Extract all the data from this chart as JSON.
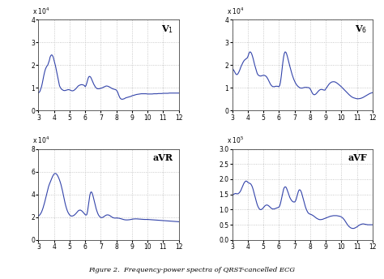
{
  "xlim": [
    3,
    12
  ],
  "xticks": [
    3,
    4,
    5,
    6,
    7,
    8,
    9,
    10,
    11,
    12
  ],
  "subplots": [
    {
      "label": "V$_1$",
      "scale_str": "x 10$^4$",
      "ylim": [
        0,
        4
      ],
      "yticks": [
        0,
        1,
        2,
        3,
        4
      ],
      "x": [
        3.0,
        3.05,
        3.1,
        3.15,
        3.2,
        3.25,
        3.3,
        3.35,
        3.4,
        3.45,
        3.5,
        3.55,
        3.6,
        3.65,
        3.7,
        3.75,
        3.8,
        3.85,
        3.9,
        3.95,
        4.0,
        4.05,
        4.1,
        4.15,
        4.2,
        4.25,
        4.3,
        4.35,
        4.4,
        4.45,
        4.5,
        4.55,
        4.6,
        4.65,
        4.7,
        4.75,
        4.8,
        4.85,
        4.9,
        4.95,
        5.0,
        5.05,
        5.1,
        5.15,
        5.2,
        5.25,
        5.3,
        5.35,
        5.4,
        5.45,
        5.5,
        5.55,
        5.6,
        5.65,
        5.7,
        5.75,
        5.8,
        5.85,
        5.9,
        5.95,
        6.0,
        6.05,
        6.1,
        6.15,
        6.2,
        6.25,
        6.3,
        6.35,
        6.4,
        6.45,
        6.5,
        6.55,
        6.6,
        6.65,
        6.7,
        6.75,
        6.8,
        6.85,
        6.9,
        6.95,
        7.0,
        7.05,
        7.1,
        7.15,
        7.2,
        7.25,
        7.3,
        7.35,
        7.4,
        7.45,
        7.5,
        7.55,
        7.6,
        7.65,
        7.7,
        7.75,
        7.8,
        7.85,
        7.9,
        7.95,
        8.0,
        8.05,
        8.1,
        8.15,
        8.2,
        8.25,
        8.3,
        8.35,
        8.4,
        8.45,
        8.5,
        8.55,
        8.6,
        8.65,
        8.7,
        8.75,
        8.8,
        8.85,
        8.9,
        8.95,
        9.0,
        9.1,
        9.2,
        9.3,
        9.4,
        9.5,
        9.6,
        9.7,
        9.8,
        9.9,
        10.0,
        10.1,
        10.2,
        10.3,
        10.4,
        10.5,
        10.6,
        10.7,
        10.8,
        10.9,
        11.0,
        11.1,
        11.2,
        11.3,
        11.4,
        11.5,
        11.6,
        11.7,
        11.8,
        11.9,
        12.0
      ],
      "y": [
        0.78,
        0.8,
        0.85,
        0.95,
        1.05,
        1.2,
        1.38,
        1.55,
        1.7,
        1.82,
        1.9,
        1.96,
        2.0,
        2.1,
        2.2,
        2.35,
        2.42,
        2.45,
        2.42,
        2.35,
        2.22,
        2.1,
        1.95,
        1.78,
        1.6,
        1.42,
        1.25,
        1.1,
        1.02,
        0.97,
        0.93,
        0.91,
        0.89,
        0.88,
        0.88,
        0.89,
        0.9,
        0.91,
        0.92,
        0.92,
        0.91,
        0.9,
        0.88,
        0.87,
        0.87,
        0.88,
        0.9,
        0.93,
        0.96,
        1.0,
        1.04,
        1.08,
        1.1,
        1.12,
        1.13,
        1.14,
        1.14,
        1.13,
        1.12,
        1.1,
        1.05,
        1.1,
        1.2,
        1.33,
        1.44,
        1.5,
        1.5,
        1.47,
        1.4,
        1.32,
        1.24,
        1.16,
        1.1,
        1.04,
        1.0,
        0.97,
        0.96,
        0.96,
        0.96,
        0.97,
        0.98,
        0.99,
        1.0,
        1.02,
        1.04,
        1.05,
        1.07,
        1.08,
        1.08,
        1.07,
        1.06,
        1.04,
        1.02,
        1.0,
        0.98,
        0.96,
        0.95,
        0.94,
        0.93,
        0.92,
        0.9,
        0.85,
        0.78,
        0.68,
        0.6,
        0.54,
        0.51,
        0.5,
        0.5,
        0.51,
        0.52,
        0.54,
        0.56,
        0.57,
        0.58,
        0.59,
        0.6,
        0.61,
        0.62,
        0.63,
        0.65,
        0.67,
        0.69,
        0.71,
        0.72,
        0.73,
        0.74,
        0.74,
        0.74,
        0.74,
        0.73,
        0.73,
        0.73,
        0.73,
        0.74,
        0.74,
        0.74,
        0.75,
        0.75,
        0.75,
        0.76,
        0.76,
        0.76,
        0.76,
        0.77,
        0.77,
        0.77,
        0.77,
        0.77,
        0.77,
        0.77
      ]
    },
    {
      "label": "V$_6$",
      "scale_str": "x 10$^4$",
      "ylim": [
        0,
        4
      ],
      "yticks": [
        0,
        1,
        2,
        3,
        4
      ],
      "x": [
        3.0,
        3.05,
        3.1,
        3.15,
        3.2,
        3.25,
        3.3,
        3.35,
        3.4,
        3.45,
        3.5,
        3.55,
        3.6,
        3.65,
        3.7,
        3.75,
        3.8,
        3.85,
        3.9,
        3.95,
        4.0,
        4.05,
        4.1,
        4.15,
        4.2,
        4.25,
        4.3,
        4.35,
        4.4,
        4.45,
        4.5,
        4.55,
        4.6,
        4.65,
        4.7,
        4.75,
        4.8,
        4.85,
        4.9,
        4.95,
        5.0,
        5.05,
        5.1,
        5.15,
        5.2,
        5.25,
        5.3,
        5.35,
        5.4,
        5.45,
        5.5,
        5.55,
        5.6,
        5.65,
        5.7,
        5.75,
        5.8,
        5.85,
        5.9,
        5.95,
        6.0,
        6.05,
        6.1,
        6.15,
        6.2,
        6.25,
        6.3,
        6.35,
        6.4,
        6.45,
        6.5,
        6.55,
        6.6,
        6.65,
        6.7,
        6.75,
        6.8,
        6.85,
        6.9,
        6.95,
        7.0,
        7.05,
        7.1,
        7.15,
        7.2,
        7.25,
        7.3,
        7.35,
        7.4,
        7.45,
        7.5,
        7.55,
        7.6,
        7.65,
        7.7,
        7.75,
        7.8,
        7.85,
        7.9,
        7.95,
        8.0,
        8.05,
        8.1,
        8.15,
        8.2,
        8.25,
        8.3,
        8.35,
        8.4,
        8.45,
        8.5,
        8.55,
        8.6,
        8.65,
        8.7,
        8.75,
        8.8,
        8.85,
        8.9,
        8.95,
        9.0,
        9.1,
        9.2,
        9.3,
        9.4,
        9.5,
        9.6,
        9.7,
        9.8,
        9.9,
        10.0,
        10.1,
        10.2,
        10.3,
        10.4,
        10.5,
        10.6,
        10.7,
        10.8,
        10.9,
        11.0,
        11.1,
        11.2,
        11.3,
        11.4,
        11.5,
        11.6,
        11.7,
        11.8,
        11.9,
        12.0
      ],
      "y": [
        1.85,
        1.82,
        1.78,
        1.72,
        1.65,
        1.6,
        1.58,
        1.6,
        1.65,
        1.72,
        1.8,
        1.9,
        1.98,
        2.05,
        2.12,
        2.18,
        2.22,
        2.25,
        2.28,
        2.3,
        2.35,
        2.45,
        2.55,
        2.58,
        2.56,
        2.5,
        2.4,
        2.28,
        2.14,
        2.0,
        1.88,
        1.75,
        1.65,
        1.58,
        1.55,
        1.53,
        1.52,
        1.52,
        1.53,
        1.54,
        1.55,
        1.55,
        1.54,
        1.52,
        1.49,
        1.44,
        1.38,
        1.31,
        1.24,
        1.17,
        1.12,
        1.08,
        1.06,
        1.05,
        1.05,
        1.06,
        1.07,
        1.07,
        1.07,
        1.06,
        1.05,
        1.1,
        1.25,
        1.5,
        1.8,
        2.1,
        2.35,
        2.52,
        2.58,
        2.56,
        2.48,
        2.36,
        2.22,
        2.08,
        1.95,
        1.82,
        1.7,
        1.58,
        1.48,
        1.38,
        1.3,
        1.23,
        1.17,
        1.12,
        1.08,
        1.05,
        1.02,
        1.0,
        0.99,
        0.99,
        0.99,
        1.0,
        1.01,
        1.02,
        1.02,
        1.02,
        1.02,
        1.01,
        1.01,
        1.0,
        0.96,
        0.9,
        0.83,
        0.76,
        0.72,
        0.7,
        0.7,
        0.72,
        0.75,
        0.79,
        0.83,
        0.87,
        0.9,
        0.92,
        0.93,
        0.93,
        0.92,
        0.91,
        0.9,
        0.9,
        0.95,
        1.05,
        1.15,
        1.22,
        1.26,
        1.27,
        1.26,
        1.22,
        1.17,
        1.11,
        1.05,
        0.98,
        0.91,
        0.84,
        0.77,
        0.7,
        0.64,
        0.59,
        0.56,
        0.54,
        0.52,
        0.52,
        0.53,
        0.55,
        0.58,
        0.62,
        0.66,
        0.7,
        0.74,
        0.77,
        0.79
      ]
    },
    {
      "label": "aVR",
      "scale_str": "x 10$^4$",
      "ylim": [
        0,
        8
      ],
      "yticks": [
        0,
        2,
        4,
        6,
        8
      ],
      "x": [
        3.0,
        3.05,
        3.1,
        3.15,
        3.2,
        3.25,
        3.3,
        3.35,
        3.4,
        3.45,
        3.5,
        3.55,
        3.6,
        3.65,
        3.7,
        3.75,
        3.8,
        3.85,
        3.9,
        3.95,
        4.0,
        4.05,
        4.1,
        4.15,
        4.2,
        4.25,
        4.3,
        4.35,
        4.4,
        4.45,
        4.5,
        4.55,
        4.6,
        4.65,
        4.7,
        4.75,
        4.8,
        4.85,
        4.9,
        4.95,
        5.0,
        5.05,
        5.1,
        5.15,
        5.2,
        5.25,
        5.3,
        5.35,
        5.4,
        5.45,
        5.5,
        5.55,
        5.6,
        5.65,
        5.7,
        5.75,
        5.8,
        5.85,
        5.9,
        5.95,
        6.0,
        6.05,
        6.1,
        6.15,
        6.2,
        6.25,
        6.3,
        6.35,
        6.4,
        6.45,
        6.5,
        6.55,
        6.6,
        6.65,
        6.7,
        6.75,
        6.8,
        6.85,
        6.9,
        6.95,
        7.0,
        7.05,
        7.1,
        7.15,
        7.2,
        7.25,
        7.3,
        7.35,
        7.4,
        7.45,
        7.5,
        7.55,
        7.6,
        7.65,
        7.7,
        7.75,
        7.8,
        7.85,
        7.9,
        7.95,
        8.0,
        8.1,
        8.2,
        8.3,
        8.4,
        8.5,
        8.6,
        8.7,
        8.8,
        8.9,
        9.0,
        9.1,
        9.2,
        9.3,
        9.4,
        9.5,
        9.6,
        9.7,
        9.8,
        9.9,
        10.0,
        10.1,
        10.2,
        10.3,
        10.4,
        10.5,
        10.6,
        10.7,
        10.8,
        10.9,
        11.0,
        11.1,
        11.2,
        11.3,
        11.4,
        11.5,
        11.6,
        11.7,
        11.8,
        11.9,
        12.0
      ],
      "y": [
        2.1,
        2.15,
        2.22,
        2.32,
        2.45,
        2.62,
        2.82,
        3.05,
        3.3,
        3.58,
        3.86,
        4.14,
        4.42,
        4.68,
        4.88,
        5.05,
        5.2,
        5.38,
        5.55,
        5.68,
        5.78,
        5.83,
        5.84,
        5.8,
        5.72,
        5.6,
        5.45,
        5.28,
        5.08,
        4.85,
        4.58,
        4.28,
        3.95,
        3.62,
        3.3,
        3.02,
        2.78,
        2.58,
        2.42,
        2.3,
        2.2,
        2.14,
        2.1,
        2.1,
        2.11,
        2.14,
        2.18,
        2.24,
        2.31,
        2.39,
        2.48,
        2.55,
        2.6,
        2.62,
        2.62,
        2.58,
        2.53,
        2.46,
        2.38,
        2.3,
        2.22,
        2.18,
        2.22,
        2.5,
        3.0,
        3.55,
        3.95,
        4.18,
        4.22,
        4.1,
        3.88,
        3.6,
        3.3,
        3.02,
        2.76,
        2.54,
        2.35,
        2.2,
        2.1,
        2.02,
        1.98,
        1.96,
        1.97,
        2.0,
        2.05,
        2.1,
        2.14,
        2.18,
        2.2,
        2.2,
        2.19,
        2.16,
        2.12,
        2.07,
        2.02,
        1.98,
        1.95,
        1.93,
        1.92,
        1.92,
        1.93,
        1.92,
        1.9,
        1.86,
        1.82,
        1.78,
        1.76,
        1.76,
        1.77,
        1.79,
        1.82,
        1.84,
        1.85,
        1.85,
        1.84,
        1.83,
        1.82,
        1.81,
        1.8,
        1.8,
        1.8,
        1.79,
        1.78,
        1.77,
        1.76,
        1.75,
        1.74,
        1.73,
        1.72,
        1.71,
        1.7,
        1.69,
        1.68,
        1.67,
        1.66,
        1.65,
        1.64,
        1.63,
        1.62,
        1.61,
        1.6
      ]
    },
    {
      "label": "aVF",
      "scale_str": "x 10$^5$",
      "ylim": [
        0,
        3
      ],
      "yticks": [
        0,
        0.5,
        1.0,
        1.5,
        2.0,
        2.5,
        3.0
      ],
      "x": [
        3.0,
        3.05,
        3.1,
        3.15,
        3.2,
        3.25,
        3.3,
        3.35,
        3.4,
        3.45,
        3.5,
        3.55,
        3.6,
        3.65,
        3.7,
        3.75,
        3.8,
        3.85,
        3.9,
        3.95,
        4.0,
        4.05,
        4.1,
        4.15,
        4.2,
        4.25,
        4.3,
        4.35,
        4.4,
        4.45,
        4.5,
        4.55,
        4.6,
        4.65,
        4.7,
        4.75,
        4.8,
        4.85,
        4.9,
        4.95,
        5.0,
        5.05,
        5.1,
        5.15,
        5.2,
        5.25,
        5.3,
        5.35,
        5.4,
        5.45,
        5.5,
        5.55,
        5.6,
        5.65,
        5.7,
        5.75,
        5.8,
        5.85,
        5.9,
        5.95,
        6.0,
        6.05,
        6.1,
        6.15,
        6.2,
        6.25,
        6.3,
        6.35,
        6.4,
        6.45,
        6.5,
        6.55,
        6.6,
        6.65,
        6.7,
        6.75,
        6.8,
        6.85,
        6.9,
        6.95,
        7.0,
        7.05,
        7.1,
        7.15,
        7.2,
        7.25,
        7.3,
        7.35,
        7.4,
        7.45,
        7.5,
        7.55,
        7.6,
        7.65,
        7.7,
        7.75,
        7.8,
        7.85,
        7.9,
        7.95,
        8.0,
        8.1,
        8.2,
        8.3,
        8.4,
        8.5,
        8.6,
        8.7,
        8.8,
        8.9,
        9.0,
        9.1,
        9.2,
        9.3,
        9.4,
        9.5,
        9.6,
        9.7,
        9.8,
        9.9,
        10.0,
        10.1,
        10.2,
        10.3,
        10.4,
        10.5,
        10.6,
        10.7,
        10.8,
        10.9,
        11.0,
        11.1,
        11.2,
        11.3,
        11.4,
        11.5,
        11.6,
        11.7,
        11.8,
        11.9,
        12.0
      ],
      "y": [
        1.45,
        1.48,
        1.5,
        1.52,
        1.53,
        1.53,
        1.52,
        1.52,
        1.53,
        1.55,
        1.58,
        1.62,
        1.68,
        1.74,
        1.8,
        1.86,
        1.9,
        1.93,
        1.94,
        1.93,
        1.9,
        1.88,
        1.87,
        1.86,
        1.84,
        1.8,
        1.74,
        1.66,
        1.56,
        1.46,
        1.36,
        1.27,
        1.18,
        1.11,
        1.06,
        1.02,
        1.0,
        1.0,
        1.01,
        1.03,
        1.06,
        1.09,
        1.12,
        1.14,
        1.15,
        1.15,
        1.14,
        1.12,
        1.1,
        1.07,
        1.05,
        1.03,
        1.02,
        1.02,
        1.02,
        1.03,
        1.04,
        1.05,
        1.06,
        1.07,
        1.08,
        1.12,
        1.2,
        1.32,
        1.45,
        1.57,
        1.67,
        1.73,
        1.75,
        1.74,
        1.69,
        1.62,
        1.55,
        1.47,
        1.4,
        1.35,
        1.31,
        1.28,
        1.26,
        1.25,
        1.25,
        1.27,
        1.33,
        1.42,
        1.52,
        1.6,
        1.65,
        1.65,
        1.62,
        1.56,
        1.47,
        1.38,
        1.28,
        1.18,
        1.09,
        1.02,
        0.96,
        0.91,
        0.88,
        0.86,
        0.85,
        0.83,
        0.8,
        0.76,
        0.72,
        0.69,
        0.67,
        0.67,
        0.68,
        0.7,
        0.72,
        0.74,
        0.76,
        0.78,
        0.79,
        0.8,
        0.8,
        0.8,
        0.79,
        0.78,
        0.76,
        0.72,
        0.66,
        0.58,
        0.5,
        0.44,
        0.4,
        0.38,
        0.38,
        0.4,
        0.43,
        0.47,
        0.5,
        0.52,
        0.53,
        0.52,
        0.51,
        0.5,
        0.5,
        0.5,
        0.5
      ]
    }
  ],
  "line_color": "#3344aa",
  "line_width": 0.8,
  "grid_color": "#bbbbbb",
  "grid_style": ":",
  "bg_color": "#ffffff",
  "caption": "Figure 2.  Frequency-power spectra of QRST-cancelled ECG"
}
